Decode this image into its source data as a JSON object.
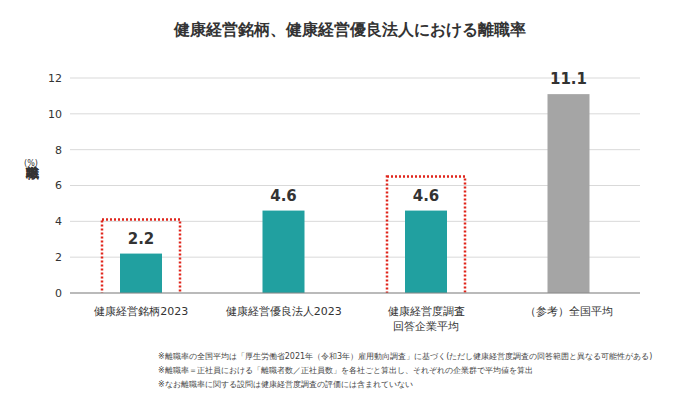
{
  "chart_data": {
    "type": "bar",
    "title": "健康経営銘柄、健康経営優良法人における離職率",
    "ylabel": "離職率",
    "ylabel_unit": "(%)",
    "categories": [
      "健康経営銘柄2023",
      "健康経営優良法人2023",
      "健康経営度調査\n回答企業平均",
      "（参考）全国平均"
    ],
    "values": [
      2.2,
      4.6,
      4.6,
      11.1
    ],
    "colors": [
      "#21a0a0",
      "#21a0a0",
      "#21a0a0",
      "#a5a5a5"
    ],
    "ylim": [
      0,
      12
    ],
    "yticks": [
      0,
      2,
      4,
      6,
      8,
      10,
      12
    ],
    "grid": true,
    "data_labels": true,
    "notes": [
      "※離職率の全国平均は「厚生労働省2021年（令和3年）雇用動向調査」に基づく(ただし健康経営度調査の回答範囲と異なる可能性がある)",
      "※離職率＝正社員における「離職者数／正社員数」を各社ごと算出し、それぞれの企業群で平均値を算出",
      "※なお離職率に関する設問は健康経営度調査の評価には含まれていない"
    ]
  }
}
